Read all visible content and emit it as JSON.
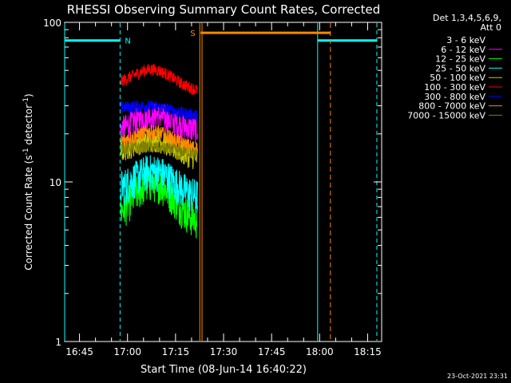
{
  "chart_data": {
    "type": "line",
    "title": "RHESSI Observing Summary Count Rates, Corrected",
    "xlabel": "Start Time (08-Jun-14 16:40:22)",
    "ylabel_main": "Corrected Count Rate (s",
    "ylabel_sup1": "-1",
    "ylabel_mid": " detector",
    "ylabel_sup2": "-1",
    "ylabel_end": ")",
    "yscale": "log",
    "ylim": [
      1,
      100
    ],
    "y_ticks": [
      {
        "value": 1,
        "label": "1"
      },
      {
        "value": 10,
        "label": "10"
      },
      {
        "value": 100,
        "label": "100"
      }
    ],
    "x_ticks": [
      {
        "minutes": 4.63,
        "label": "16:45"
      },
      {
        "minutes": 19.63,
        "label": "17:00"
      },
      {
        "minutes": 34.63,
        "label": "17:15"
      },
      {
        "minutes": 49.63,
        "label": "17:30"
      },
      {
        "minutes": 64.63,
        "label": "17:45"
      },
      {
        "minutes": 79.63,
        "label": "18:00"
      },
      {
        "minutes": 94.63,
        "label": "18:15"
      }
    ],
    "xlim_minutes": [
      0,
      99
    ],
    "legend": {
      "header_line1": "Det 1,3,4,5,6,9,",
      "header_line2": "Att 0",
      "placement": "right"
    },
    "series": [
      {
        "name": "3 - 6 keV",
        "color": "#000000",
        "x_range": [
          17.5,
          41.5
        ],
        "start_level": 26,
        "peak_level": 31,
        "end_level": 29,
        "noise": 0.05
      },
      {
        "name": "6 - 12 keV",
        "color": "#ff00ff",
        "x_range": [
          17.5,
          41.5
        ],
        "start_level": 20,
        "peak_level": 27,
        "end_level": 21,
        "noise": 0.09
      },
      {
        "name": "12 - 25 keV",
        "color": "#00ff00",
        "x_range": [
          17.5,
          41.5
        ],
        "start_level": 5.5,
        "peak_level": 10,
        "end_level": 5.5,
        "noise": 0.12
      },
      {
        "name": "25 - 50 keV",
        "color": "#00ffff",
        "x_range": [
          17.5,
          41.5
        ],
        "start_level": 8.5,
        "peak_level": 12,
        "end_level": 8,
        "noise": 0.12
      },
      {
        "name": "50 - 100 keV",
        "color": "#cccc00",
        "x_range": [
          17.5,
          41.5
        ],
        "start_level": 15,
        "peak_level": 19,
        "end_level": 14,
        "noise": 0.08
      },
      {
        "name": "100 - 300 keV",
        "color": "#ff0000",
        "x_range": [
          17.5,
          41.5
        ],
        "start_level": 40,
        "peak_level": 52,
        "end_level": 37,
        "noise": 0.04
      },
      {
        "name": "300 - 800 keV",
        "color": "#0000ff",
        "x_range": [
          17.5,
          41.5
        ],
        "start_level": 29,
        "peak_level": 31,
        "end_level": 26,
        "noise": 0.04
      },
      {
        "name": "800 - 7000 keV",
        "color": "#ff8800",
        "x_range": [
          17.5,
          41.5
        ],
        "start_level": 17,
        "peak_level": 21,
        "end_level": 16,
        "noise": 0.05
      },
      {
        "name": "7000 - 15000 keV",
        "color": "#808000",
        "x_range": [
          17.5,
          41.5
        ],
        "start_level": 16,
        "peak_level": 17,
        "end_level": 15,
        "noise": 0.04
      }
    ],
    "annotations": {
      "night_label": "N",
      "saa_label": "S",
      "night_color": "#00ffff",
      "saa_color": "#ff8800",
      "night_bars": [
        {
          "x_range": [
            0,
            17.3
          ],
          "y": 77
        },
        {
          "x_range": [
            79,
            97.5
          ],
          "y": 77
        }
      ],
      "night_solid_lines": [
        0,
        79
      ],
      "night_dashed_lines": [
        17.3,
        97.5
      ],
      "saa_bar": {
        "x_range": [
          42.5,
          83
        ],
        "y": 86
      },
      "saa_solid_lines": [
        42.2,
        42.9
      ],
      "saa_dashed_lines": [
        83
      ]
    }
  },
  "footer": {
    "timestamp": "23-Oct-2021 23:31"
  }
}
